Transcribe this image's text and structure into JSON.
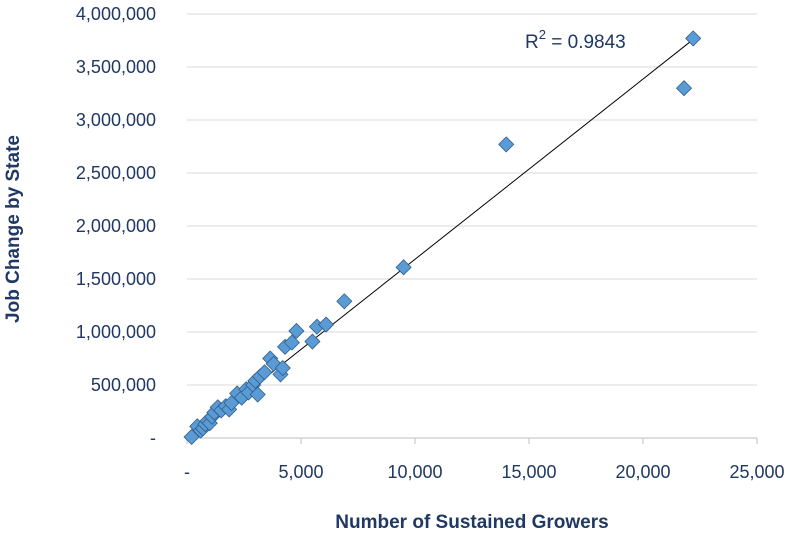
{
  "chart_data": {
    "type": "scatter",
    "xlabel": "Number of Sustained Growers",
    "ylabel": "Job Change by State",
    "xlim": [
      0,
      25000
    ],
    "ylim": [
      0,
      4000000
    ],
    "x_ticks": [
      0,
      5000,
      10000,
      15000,
      20000,
      25000
    ],
    "x_tick_labels": [
      "-",
      "5,000",
      "10,000",
      "15,000",
      "20,000",
      "25,000"
    ],
    "y_ticks": [
      0,
      500000,
      1000000,
      1500000,
      2000000,
      2500000,
      3000000,
      3500000,
      4000000
    ],
    "y_tick_labels": [
      "-",
      "500,000",
      "1,000,000",
      "1,500,000",
      "2,000,000",
      "2,500,000",
      "3,000,000",
      "3,500,000",
      "4,000,000"
    ],
    "grid": "horizontal",
    "marker": "diamond",
    "marker_color": "#5b9bd5",
    "marker_edge": "#2e5f8a",
    "trendline": {
      "type": "linear",
      "from": [
        200,
        20000
      ],
      "to": [
        22200,
        3760000
      ]
    },
    "r_squared_label": "R",
    "r_squared_sup": "2",
    "r_squared_value": " = 0.9843",
    "points": [
      {
        "x": 200,
        "y": 10000
      },
      {
        "x": 450,
        "y": 110000
      },
      {
        "x": 600,
        "y": 70000
      },
      {
        "x": 700,
        "y": 90000
      },
      {
        "x": 800,
        "y": 130000
      },
      {
        "x": 900,
        "y": 160000
      },
      {
        "x": 1000,
        "y": 140000
      },
      {
        "x": 1100,
        "y": 200000
      },
      {
        "x": 1200,
        "y": 240000
      },
      {
        "x": 1350,
        "y": 290000
      },
      {
        "x": 1500,
        "y": 260000
      },
      {
        "x": 1700,
        "y": 300000
      },
      {
        "x": 1850,
        "y": 270000
      },
      {
        "x": 1950,
        "y": 330000
      },
      {
        "x": 2200,
        "y": 420000
      },
      {
        "x": 2400,
        "y": 380000
      },
      {
        "x": 2600,
        "y": 460000
      },
      {
        "x": 2700,
        "y": 430000
      },
      {
        "x": 2900,
        "y": 500000
      },
      {
        "x": 3000,
        "y": 540000
      },
      {
        "x": 3100,
        "y": 410000
      },
      {
        "x": 3200,
        "y": 580000
      },
      {
        "x": 3400,
        "y": 620000
      },
      {
        "x": 3650,
        "y": 750000
      },
      {
        "x": 3800,
        "y": 700000
      },
      {
        "x": 4100,
        "y": 600000
      },
      {
        "x": 4200,
        "y": 660000
      },
      {
        "x": 4300,
        "y": 860000
      },
      {
        "x": 4600,
        "y": 900000
      },
      {
        "x": 4800,
        "y": 1010000
      },
      {
        "x": 5500,
        "y": 910000
      },
      {
        "x": 5700,
        "y": 1050000
      },
      {
        "x": 6100,
        "y": 1070000
      },
      {
        "x": 6900,
        "y": 1290000
      },
      {
        "x": 9500,
        "y": 1610000
      },
      {
        "x": 14000,
        "y": 2770000
      },
      {
        "x": 21800,
        "y": 3300000
      },
      {
        "x": 22200,
        "y": 3770000
      }
    ]
  }
}
